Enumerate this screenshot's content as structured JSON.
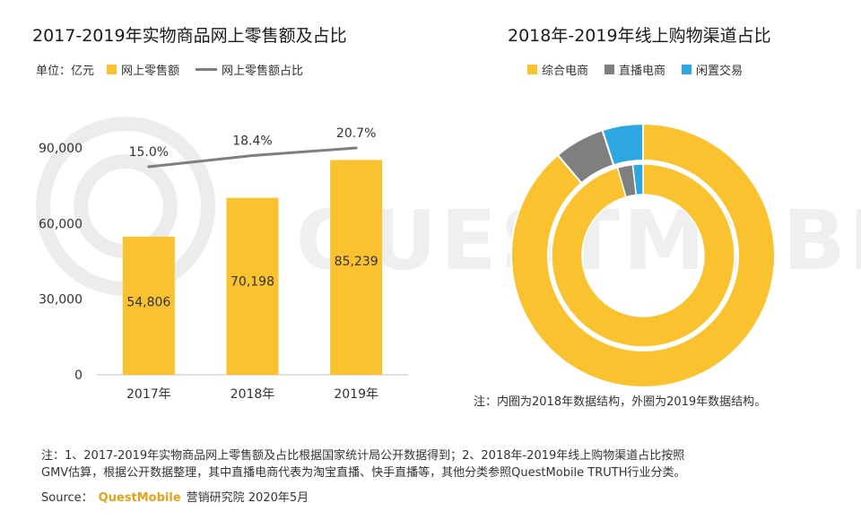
{
  "left": {
    "title": "2017-2019年实物商品网上零售额及占比",
    "unit": "单位：亿元",
    "legend_bar": "网上零售额",
    "legend_line": "网上零售额占比"
  },
  "right": {
    "title": "2018年-2019年线上购物渠道占比",
    "legend": [
      "综合电商",
      "直播电商",
      "闲置交易"
    ],
    "note": "注：内圈为2018年数据结构，外圈为2019年数据结构。"
  },
  "footnote": {
    "line1": "注：1、2017-2019年实物商品网上零售额及占比根据国家统计局公开数据得到；2、2018年-2019年线上购物渠道占比按照",
    "line2": "GMV估算，根据公开数据整理，其中直播电商代表为淘宝直播、快手直播等，其他分类参照QuestMobile TRUTH行业分类。",
    "source_label": "Source：",
    "brand": "QuestMobile",
    "source_rest": "营销研究院 2020年5月"
  },
  "colors": {
    "bar": "#f9c22e",
    "line": "#7f7f7f",
    "donut": [
      "#f9c22e",
      "#7f7f7f",
      "#2ea7e0"
    ]
  },
  "chart_data": [
    {
      "type": "bar",
      "title": "2017-2019年实物商品网上零售额及占比",
      "categories": [
        "2017年",
        "2018年",
        "2019年"
      ],
      "series": [
        {
          "name": "网上零售额",
          "values": [
            54806,
            70198,
            85239
          ],
          "labels": [
            "54,806",
            "70,198",
            "85,239"
          ]
        },
        {
          "name": "网上零售额占比",
          "type": "line",
          "values": [
            15.0,
            18.4,
            20.7
          ],
          "labels": [
            "15.0%",
            "18.4%",
            "20.7%"
          ]
        }
      ],
      "yticks": [
        0,
        30000,
        60000,
        90000
      ],
      "ytick_labels": [
        "0",
        "30,000",
        "60,000",
        "90,000"
      ],
      "ylim": [
        0,
        90000
      ],
      "line_ylim": [
        0,
        22
      ]
    },
    {
      "type": "pie",
      "subtype": "double-donut",
      "title": "2018年-2019年线上购物渠道占比",
      "categories": [
        "综合电商",
        "直播电商",
        "闲置交易"
      ],
      "series": [
        {
          "name": "2018",
          "ring": "inner",
          "values": [
            0.955,
            0.027,
            0.018
          ]
        },
        {
          "name": "2019",
          "ring": "outer",
          "values": [
            0.888,
            0.062,
            0.05
          ]
        }
      ]
    }
  ]
}
